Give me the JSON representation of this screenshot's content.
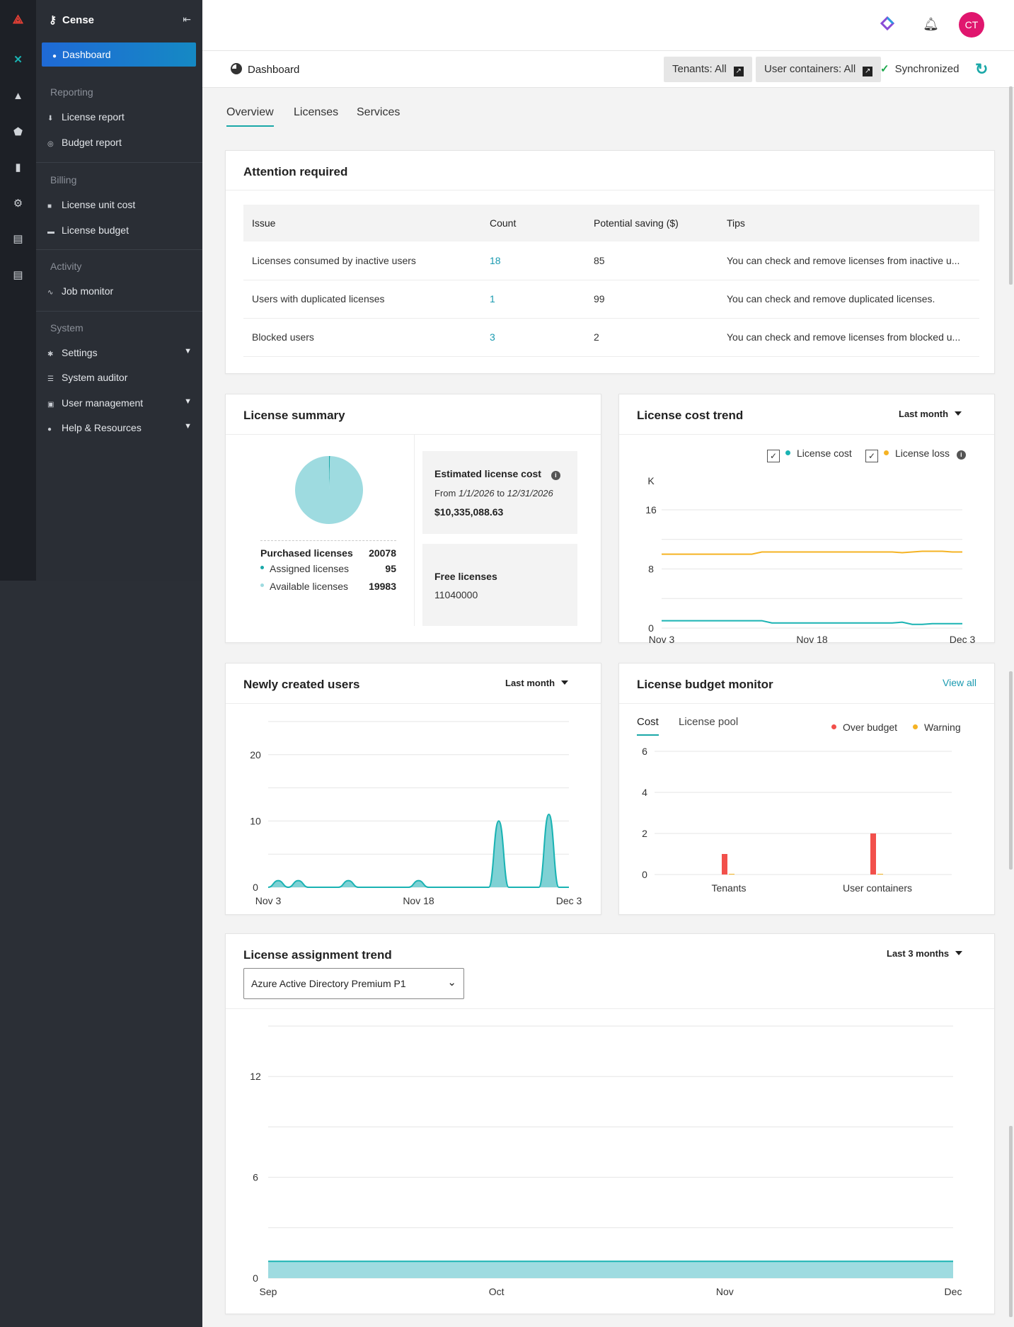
{
  "app": {
    "name": "Cense"
  },
  "nav": {
    "active": "Dashboard",
    "sections": [
      {
        "title": "Reporting",
        "items": [
          "License report",
          "Budget report"
        ]
      },
      {
        "title": "Billing",
        "items": [
          "License unit cost",
          "License budget"
        ]
      },
      {
        "title": "Activity",
        "items": [
          "Job monitor"
        ]
      },
      {
        "title": "System",
        "items": [
          "Settings",
          "System auditor",
          "User management",
          "Help & Resources"
        ]
      }
    ]
  },
  "topbar": {
    "avatar_initials": "CT"
  },
  "breadcrumb": {
    "title": "Dashboard"
  },
  "filters": {
    "tenants": "Tenants: All",
    "user_containers": "User containers: All",
    "sync_status": "Synchronized"
  },
  "tabs": [
    "Overview",
    "Licenses",
    "Services"
  ],
  "attention": {
    "title": "Attention required",
    "columns": [
      "Issue",
      "Count",
      "Potential saving ($)",
      "Tips"
    ],
    "rows": [
      {
        "issue": "Licenses consumed by inactive users",
        "count": "18",
        "saving": "85",
        "tips": "You can check and remove licenses from inactive u..."
      },
      {
        "issue": "Users with duplicated licenses",
        "count": "1",
        "saving": "99",
        "tips": "You can check and remove duplicated licenses."
      },
      {
        "issue": "Blocked users",
        "count": "3",
        "saving": "2",
        "tips": "You can check and remove licenses from blocked u..."
      }
    ]
  },
  "license_summary": {
    "title": "License summary",
    "purchased_label": "Purchased licenses",
    "purchased_value": "20078",
    "assigned_label": "Assigned licenses",
    "assigned_value": "95",
    "available_label": "Available licenses",
    "available_value": "19983",
    "est_cost_label": "Estimated license cost",
    "from_label": "From",
    "from_date": "1/1/2026",
    "to_label": "to",
    "to_date": "12/31/2026",
    "est_cost_value": "$10,335,088.63",
    "free_label": "Free licenses",
    "free_value": "11040000",
    "colors": {
      "assigned": "#1aa8a8",
      "available": "#9edbe0"
    }
  },
  "cost_trend": {
    "title": "License cost trend",
    "range": "Last month",
    "legend": [
      "License cost",
      "License loss"
    ]
  },
  "new_users": {
    "title": "Newly created users",
    "range": "Last month"
  },
  "budget_monitor": {
    "title": "License budget monitor",
    "view_all": "View all",
    "tabs": [
      "Cost",
      "License pool"
    ],
    "legend": [
      "Over budget",
      "Warning"
    ]
  },
  "assignment_trend": {
    "title": "License assignment trend",
    "range": "Last 3 months",
    "product": "Azure Active Directory Premium P1"
  },
  "chart_data": [
    {
      "type": "pie",
      "values": [
        95,
        19983
      ],
      "labels": [
        "Assigned licenses",
        "Available licenses"
      ]
    },
    {
      "type": "line",
      "ylabel": "K",
      "ylim": [
        0,
        16
      ],
      "yticks": [
        0,
        8,
        16
      ],
      "x_ticks": [
        "Nov 3",
        "Nov 18",
        "Dec 3"
      ],
      "x": [
        0,
        1,
        2,
        3,
        4,
        5,
        6,
        7,
        8,
        9,
        10,
        11,
        12,
        13,
        14,
        15,
        16,
        17,
        18,
        19,
        20,
        21,
        22,
        23,
        24,
        25,
        26,
        27,
        28,
        29,
        30
      ],
      "series": [
        {
          "name": "License cost",
          "color": "#1ab3b3",
          "values": [
            1.0,
            1.0,
            1.0,
            1.0,
            1.0,
            1.0,
            1.0,
            1.0,
            1.0,
            1.0,
            1.0,
            0.7,
            0.7,
            0.7,
            0.7,
            0.7,
            0.7,
            0.7,
            0.7,
            0.7,
            0.7,
            0.7,
            0.7,
            0.7,
            0.8,
            0.5,
            0.5,
            0.6,
            0.6,
            0.6,
            0.6
          ]
        },
        {
          "name": "License loss",
          "color": "#f5b324",
          "values": [
            10.0,
            10.0,
            10.0,
            10.0,
            10.0,
            10.0,
            10.0,
            10.0,
            10.0,
            10.0,
            10.3,
            10.3,
            10.3,
            10.3,
            10.3,
            10.3,
            10.3,
            10.3,
            10.3,
            10.3,
            10.3,
            10.3,
            10.3,
            10.3,
            10.2,
            10.3,
            10.4,
            10.4,
            10.4,
            10.3,
            10.3
          ]
        }
      ]
    },
    {
      "type": "area",
      "ylim": [
        0,
        25
      ],
      "yticks": [
        0,
        10,
        20
      ],
      "x_ticks": [
        "Nov 3",
        "Nov 18",
        "Dec 3"
      ],
      "x": [
        0,
        1,
        2,
        3,
        4,
        5,
        6,
        7,
        8,
        9,
        10,
        11,
        12,
        13,
        14,
        15,
        16,
        17,
        18,
        19,
        20,
        21,
        22,
        23,
        24,
        25,
        26,
        27,
        28,
        29,
        30
      ],
      "series": [
        {
          "color": "#1ab3b3",
          "values": [
            0,
            1,
            0,
            1,
            0,
            0,
            0,
            0,
            1,
            0,
            0,
            0,
            0,
            0,
            0,
            1,
            0,
            0,
            0,
            0,
            0,
            0,
            0,
            10,
            0,
            0,
            0,
            0,
            11,
            0,
            0
          ]
        }
      ]
    },
    {
      "type": "bar",
      "categories": [
        "Tenants",
        "User containers"
      ],
      "ylim": [
        0,
        6
      ],
      "yticks": [
        0,
        2,
        4,
        6
      ],
      "series": [
        {
          "name": "Over budget",
          "color": "#f2504b",
          "values": [
            1,
            2
          ]
        },
        {
          "name": "Warning",
          "color": "#f5b324",
          "values": [
            0,
            0
          ]
        }
      ]
    },
    {
      "type": "area",
      "ylim": [
        0,
        15
      ],
      "yticks": [
        0,
        6,
        12
      ],
      "x_ticks": [
        "Sep",
        "Oct",
        "Nov",
        "Dec"
      ],
      "series": [
        {
          "color": "#1ab3b3",
          "values": [
            1,
            1,
            1,
            1
          ]
        }
      ]
    }
  ]
}
